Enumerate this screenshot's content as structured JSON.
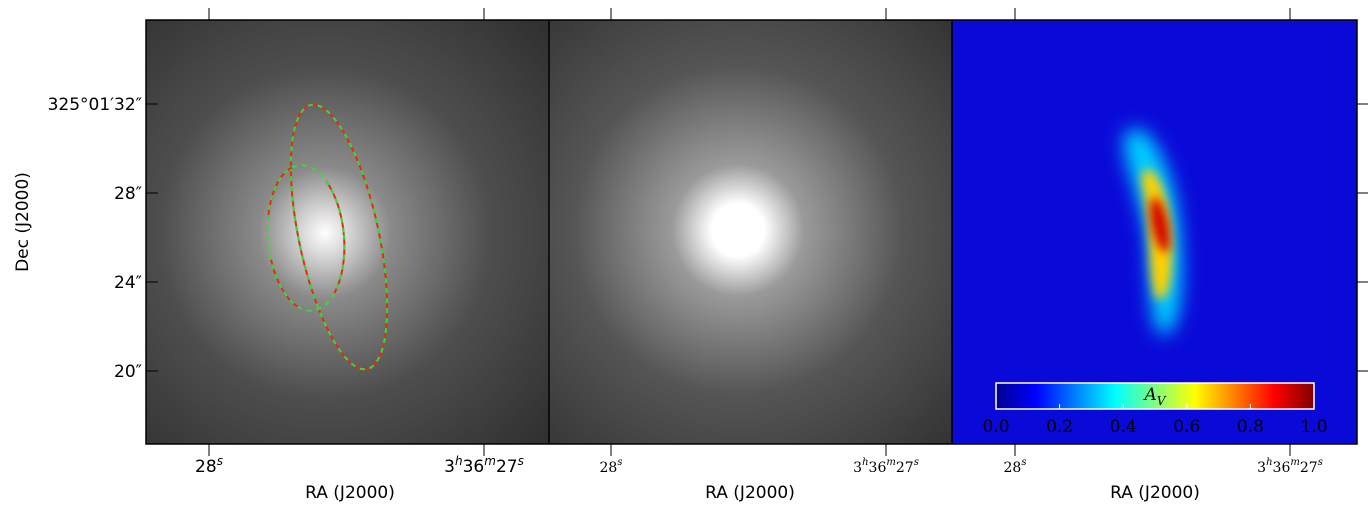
{
  "axes": {
    "y_title": "Dec (J2000)",
    "x_title": "RA (J2000)",
    "y_labels": [
      [
        "325°01′32″"
      ],
      [
        "28″"
      ],
      [
        "24″"
      ],
      [
        "20″"
      ]
    ],
    "x_labels": [
      [
        "28",
        "s"
      ],
      [
        "3",
        "h",
        "36",
        "m",
        "27",
        "s"
      ]
    ]
  },
  "colorbar": {
    "label_main": "A",
    "label_sub": "V",
    "ticks": [
      "0.0",
      "0.2",
      "0.4",
      "0.6",
      "0.8",
      "1.0"
    ]
  }
}
